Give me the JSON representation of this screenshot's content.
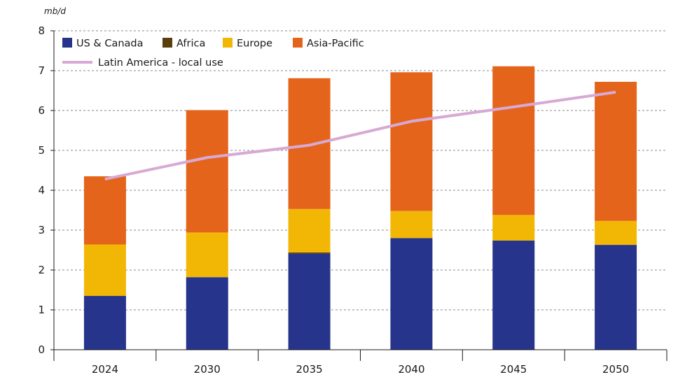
{
  "chart_data": {
    "type": "bar",
    "stacked": true,
    "unit_label": "mb/d",
    "categories": [
      "2024",
      "2030",
      "2035",
      "2040",
      "2045",
      "2050"
    ],
    "ylim": [
      0,
      8
    ],
    "yticks": [
      0,
      1,
      2,
      3,
      4,
      5,
      6,
      7,
      8
    ],
    "grid": "horizontal dashed",
    "legend_position": "top-left",
    "series": [
      {
        "name": "US & Canada",
        "kind": "bar",
        "color": "#27348b",
        "values": [
          1.35,
          1.82,
          2.41,
          2.8,
          2.74,
          2.63
        ]
      },
      {
        "name": "Africa",
        "kind": "bar",
        "color": "#5a3f0c",
        "values": [
          0.0,
          0.0,
          0.03,
          0.0,
          0.0,
          0.0
        ]
      },
      {
        "name": "Europe",
        "kind": "bar",
        "color": "#f2b705",
        "values": [
          1.29,
          1.12,
          1.09,
          0.68,
          0.64,
          0.6
        ]
      },
      {
        "name": "Asia-Pacific",
        "kind": "bar",
        "color": "#e5641b",
        "values": [
          1.71,
          3.07,
          3.28,
          3.48,
          3.73,
          3.49
        ]
      },
      {
        "name": "Latin America - local use",
        "kind": "line",
        "color": "#d7a9d4",
        "values": [
          4.28,
          4.82,
          5.13,
          5.73,
          6.09,
          6.46
        ]
      }
    ]
  }
}
